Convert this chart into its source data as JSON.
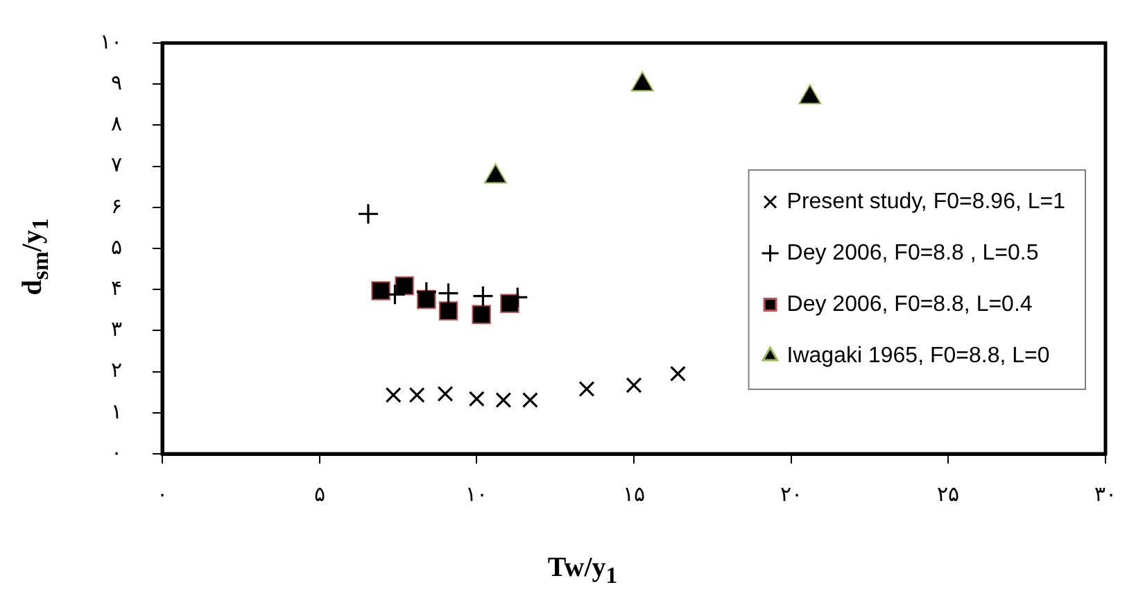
{
  "chart_data": {
    "type": "scatter",
    "xlabel": "Tw/y$_{1}$",
    "ylabel": "d$_{sm}$/y$_{1}$",
    "xlim": [
      0,
      30
    ],
    "ylim": [
      0,
      10
    ],
    "xticks": [
      {
        "value": 0,
        "label": "۰"
      },
      {
        "value": 5,
        "label": "۵"
      },
      {
        "value": 10,
        "label": "۱۰"
      },
      {
        "value": 15,
        "label": "۱۵"
      },
      {
        "value": 20,
        "label": "۲۰"
      },
      {
        "value": 25,
        "label": "۲۵"
      },
      {
        "value": 30,
        "label": "۳۰"
      }
    ],
    "yticks": [
      {
        "value": 0,
        "label": "۰"
      },
      {
        "value": 1,
        "label": "۱"
      },
      {
        "value": 2,
        "label": "۲"
      },
      {
        "value": 3,
        "label": "۳"
      },
      {
        "value": 4,
        "label": "۴"
      },
      {
        "value": 5,
        "label": "۵"
      },
      {
        "value": 6,
        "label": "۶"
      },
      {
        "value": 7,
        "label": "۷"
      },
      {
        "value": 8,
        "label": "۸"
      },
      {
        "value": 9,
        "label": "۹"
      },
      {
        "value": 10,
        "label": "۱۰"
      }
    ],
    "grid": false,
    "legend": "right",
    "series": [
      {
        "name": "Present study, F0=8.96, L=1",
        "color": "#000000",
        "marker": "x",
        "x": [
          7.35,
          8.1,
          9.0,
          10.0,
          10.85,
          11.7,
          13.5,
          15.0,
          16.4
        ],
        "values": [
          1.43,
          1.43,
          1.46,
          1.34,
          1.31,
          1.31,
          1.58,
          1.67,
          1.95
        ]
      },
      {
        "name": "Dey 2006, F0=8.8 , L=0.5",
        "color": "#000000",
        "marker": "cross",
        "x": [
          6.55,
          7.4,
          8.4,
          9.1,
          10.2,
          11.3
        ],
        "values": [
          5.84,
          3.88,
          3.94,
          3.91,
          3.84,
          3.81
        ]
      },
      {
        "name": "Dey 2006, F0=8.8, L=0.4",
        "color": "#000000",
        "marker": "square",
        "x": [
          6.95,
          7.7,
          8.4,
          9.1,
          10.15,
          11.05
        ],
        "values": [
          3.97,
          4.09,
          3.76,
          3.48,
          3.39,
          3.66
        ]
      },
      {
        "name": "Iwagaki 1965, F0=8.8, L=0",
        "color": "#000000",
        "marker": "triangle",
        "x": [
          10.6,
          15.27,
          20.6
        ],
        "values": [
          6.75,
          8.99,
          8.68
        ]
      }
    ]
  }
}
